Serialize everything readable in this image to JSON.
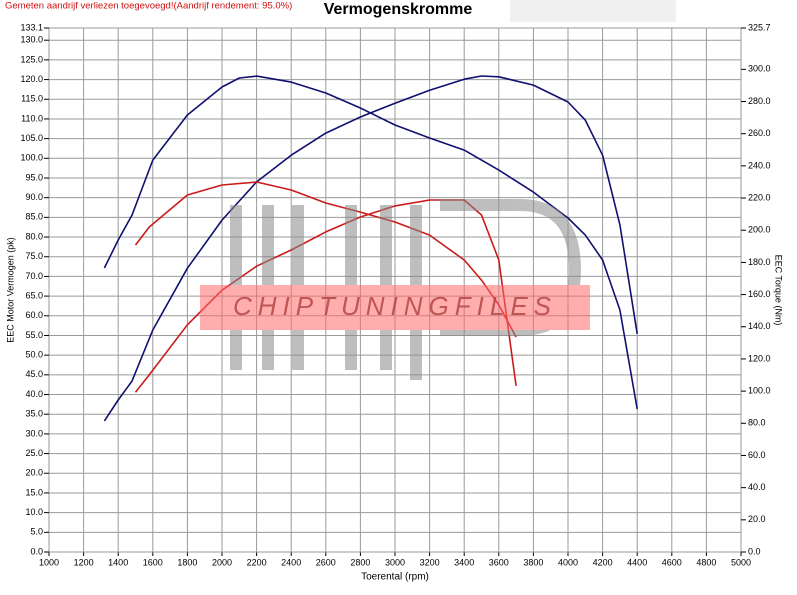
{
  "chart_data": {
    "type": "line",
    "title": "Vermogenskromme",
    "note": "Gemeten aandrijf verliezen toegevoegd!(Aandrijf rendement: 95.0%)",
    "watermark": "CHIPTUNINGFILES",
    "x_label": "Toerental (rpm)",
    "y_label": "EEC Motor Vermogen (pk)",
    "y2_label": "EEC Torque (Nm)",
    "xlim": [
      1000,
      5000
    ],
    "xticks": [
      1000,
      1200,
      1400,
      1600,
      1800,
      2000,
      2200,
      2400,
      2600,
      2800,
      3000,
      3200,
      3400,
      3600,
      3800,
      4000,
      4200,
      4400,
      4600,
      4800,
      5000
    ],
    "ylim": [
      0,
      133.1
    ],
    "yticks": [
      {
        "value": 0,
        "label": "0.0"
      },
      {
        "value": 5,
        "label": "5.0"
      },
      {
        "value": 10,
        "label": "10.0"
      },
      {
        "value": 15,
        "label": "15.0"
      },
      {
        "value": 20,
        "label": "20.0"
      },
      {
        "value": 25,
        "label": "25.0"
      },
      {
        "value": 30,
        "label": "30.0"
      },
      {
        "value": 35,
        "label": "35.0"
      },
      {
        "value": 40,
        "label": "40.0"
      },
      {
        "value": 45,
        "label": "45.0"
      },
      {
        "value": 50,
        "label": "50.0"
      },
      {
        "value": 55,
        "label": "55.0"
      },
      {
        "value": 60,
        "label": "60.0"
      },
      {
        "value": 65,
        "label": "65.0"
      },
      {
        "value": 70,
        "label": "70.0"
      },
      {
        "value": 75,
        "label": "75.0"
      },
      {
        "value": 80,
        "label": "80.0"
      },
      {
        "value": 85,
        "label": "85.0"
      },
      {
        "value": 90,
        "label": "90.0"
      },
      {
        "value": 95,
        "label": "95.0"
      },
      {
        "value": 100,
        "label": "100.0"
      },
      {
        "value": 105,
        "label": "105.0"
      },
      {
        "value": 110,
        "label": "110.0"
      },
      {
        "value": 115,
        "label": "115.0"
      },
      {
        "value": 120,
        "label": "120.0"
      },
      {
        "value": 125,
        "label": "125.0"
      },
      {
        "value": 130,
        "label": "130.0"
      },
      133.1
    ],
    "y2lim": [
      0,
      325.7
    ],
    "y2ticks": [
      {
        "value": 0,
        "label": "0.0"
      },
      {
        "value": 20,
        "label": "20.0"
      },
      {
        "value": 40,
        "label": "40.0"
      },
      {
        "value": 60,
        "label": "60.0"
      },
      {
        "value": 80,
        "label": "80.0"
      },
      {
        "value": 100,
        "label": "100.0"
      },
      {
        "value": 120,
        "label": "120.0"
      },
      {
        "value": 140,
        "label": "140.0"
      },
      {
        "value": 160,
        "label": "160.0"
      },
      {
        "value": 180,
        "label": "180.0"
      },
      {
        "value": 200,
        "label": "200.0"
      },
      {
        "value": 220,
        "label": "220.0"
      },
      {
        "value": 240,
        "label": "240.0"
      },
      {
        "value": 260,
        "label": "260.0"
      },
      {
        "value": 280,
        "label": "280.0"
      },
      {
        "value": 300,
        "label": "300.0"
      },
      325.7
    ],
    "grid": true,
    "series": [
      {
        "color": "#101070",
        "axis": "y",
        "x": [
          1320,
          1400,
          1480,
          1600,
          1800,
          2000,
          2200,
          2400,
          2600,
          2800,
          3000,
          3200,
          3400,
          3500,
          3600,
          3800,
          4000,
          4100,
          4200,
          4300,
          4400
        ],
        "values": [
          33.3,
          38.6,
          43.4,
          56.4,
          72.1,
          84.3,
          94,
          100.8,
          106.4,
          110.5,
          114,
          117.3,
          120.1,
          120.9,
          120.7,
          118.6,
          114.3,
          109.7,
          100.8,
          83.1,
          55.4
        ]
      },
      {
        "color": "#101070",
        "axis": "y2",
        "x": [
          1320,
          1400,
          1480,
          1600,
          1800,
          2000,
          2100,
          2200,
          2400,
          2600,
          2800,
          3000,
          3200,
          3400,
          3600,
          3800,
          4000,
          4100,
          4200,
          4300,
          4400
        ],
        "values": [
          176.5,
          193.9,
          209.4,
          243.6,
          271.6,
          289,
          294.6,
          295.8,
          292.1,
          285.3,
          276,
          265.4,
          257.3,
          249.8,
          237.4,
          223.7,
          207.6,
          197,
          181.5,
          150.4,
          88.9
        ]
      },
      {
        "color": "#cc1a1a",
        "axis": "y",
        "x": [
          1500,
          1580,
          1800,
          2000,
          2200,
          2400,
          2600,
          2800,
          3000,
          3200,
          3400,
          3500,
          3600,
          3700
        ],
        "values": [
          40.6,
          45,
          57.7,
          66.5,
          72.6,
          76.7,
          81.3,
          85.1,
          87.9,
          89.4,
          89.4,
          85.6,
          74.2,
          42.2
        ]
      },
      {
        "color": "#cc1a1a",
        "axis": "y2",
        "x": [
          1500,
          1580,
          1800,
          2000,
          2200,
          2400,
          2600,
          2800,
          3000,
          3200,
          3400,
          3500,
          3600,
          3700
        ],
        "values": [
          190.8,
          202,
          221.9,
          228.1,
          230,
          225,
          216.9,
          211.3,
          205.1,
          197,
          181.5,
          169,
          153.5,
          133.6
        ]
      }
    ]
  }
}
